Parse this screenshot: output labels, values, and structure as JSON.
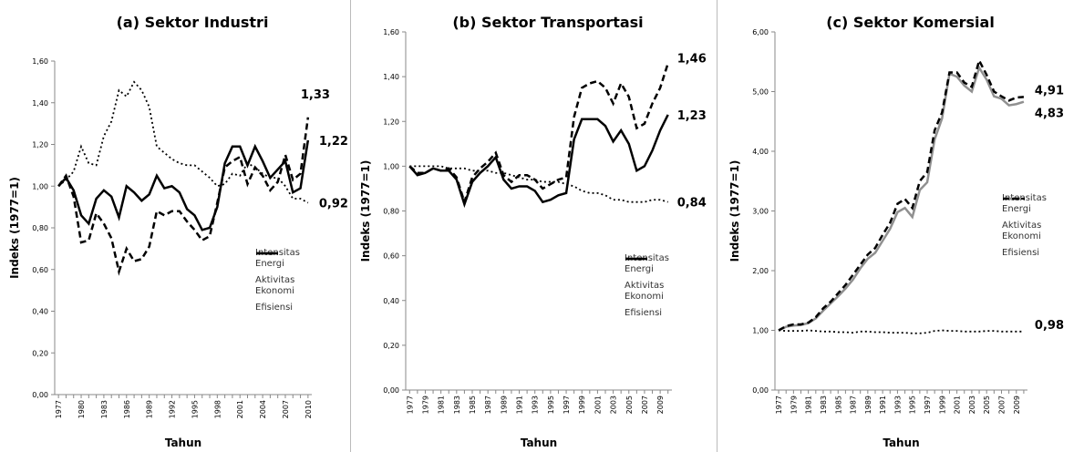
{
  "chart_data": [
    {
      "type": "line",
      "title": "(a) Sektor Industri",
      "x_label": "Tahun",
      "y_label": "Indeks (1977=1)",
      "categories": [
        "1977",
        null,
        null,
        "1980",
        null,
        null,
        "1983",
        null,
        null,
        "1986",
        null,
        null,
        "1989",
        null,
        null,
        "1992",
        null,
        null,
        "1995",
        null,
        null,
        "1998",
        null,
        null,
        "2001",
        null,
        null,
        "2004",
        null,
        null,
        "2007",
        null,
        null,
        "2010"
      ],
      "ylim": [
        0,
        1.6
      ],
      "yticks": [
        {
          "value": 0,
          "label": "0,00"
        },
        {
          "value": 0.2,
          "label": "0,20"
        },
        {
          "value": 0.4,
          "label": "0,40"
        },
        {
          "value": 0.6,
          "label": "0,60"
        },
        {
          "value": 0.8,
          "label": "0,80"
        },
        {
          "value": 1.0,
          "label": "1,00"
        },
        {
          "value": 1.2,
          "label": "1,20"
        },
        {
          "value": 1.4,
          "label": "1,40"
        },
        {
          "value": 1.6,
          "label": "1,60"
        }
      ],
      "series": [
        {
          "name": "Intensitas Energi",
          "color": "#000000",
          "style": "solid",
          "values": [
            1.0,
            1.04,
            0.98,
            0.86,
            0.82,
            0.94,
            0.98,
            0.95,
            0.85,
            1.0,
            0.97,
            0.93,
            0.96,
            1.05,
            0.99,
            1.0,
            0.97,
            0.89,
            0.86,
            0.79,
            0.8,
            0.9,
            1.11,
            1.19,
            1.19,
            1.1,
            1.19,
            1.12,
            1.04,
            1.08,
            1.12,
            0.97,
            0.99,
            1.22
          ],
          "value_labels": [
            null,
            null,
            null,
            null,
            null,
            null,
            null,
            null,
            null,
            null,
            null,
            null,
            null,
            null,
            null,
            null,
            null,
            null,
            null,
            null,
            null,
            null,
            null,
            null,
            null,
            null,
            null,
            null,
            null,
            null,
            null,
            null,
            null,
            "1,22"
          ]
        },
        {
          "name": "Aktivitas Ekonomi",
          "color": "#000000",
          "style": "dotted",
          "values": [
            1.0,
            1.03,
            1.07,
            1.19,
            1.11,
            1.1,
            1.24,
            1.31,
            1.46,
            1.43,
            1.5,
            1.46,
            1.38,
            1.19,
            1.16,
            1.13,
            1.11,
            1.1,
            1.1,
            1.07,
            1.04,
            1.0,
            1.01,
            1.06,
            1.05,
            1.11,
            1.09,
            1.06,
            1.04,
            1.04,
            1.0,
            0.94,
            0.94,
            0.92
          ],
          "value_labels": [
            null,
            null,
            null,
            null,
            null,
            null,
            null,
            null,
            null,
            null,
            null,
            null,
            null,
            null,
            null,
            null,
            null,
            null,
            null,
            null,
            null,
            null,
            null,
            null,
            null,
            null,
            null,
            null,
            null,
            null,
            null,
            null,
            null,
            "0,92"
          ]
        },
        {
          "name": "Efisiensi",
          "color": "#000000",
          "style": "dashed",
          "values": [
            1.0,
            1.05,
            0.95,
            0.73,
            0.74,
            0.87,
            0.82,
            0.75,
            0.59,
            0.7,
            0.64,
            0.65,
            0.71,
            0.88,
            0.86,
            0.88,
            0.88,
            0.83,
            0.79,
            0.74,
            0.76,
            0.92,
            1.09,
            1.12,
            1.14,
            1.01,
            1.09,
            1.05,
            0.98,
            1.02,
            1.15,
            1.03,
            1.06,
            1.33
          ],
          "value_labels": [
            null,
            null,
            null,
            null,
            null,
            null,
            null,
            null,
            null,
            null,
            null,
            null,
            null,
            null,
            null,
            null,
            null,
            null,
            null,
            null,
            null,
            null,
            null,
            null,
            null,
            null,
            null,
            null,
            null,
            null,
            null,
            null,
            null,
            "1,33"
          ]
        }
      ]
    },
    {
      "type": "line",
      "title": "(b) Sektor Transportasi",
      "x_label": "Tahun",
      "y_label": "Indeks (1977=1)",
      "categories": [
        "1977",
        null,
        "1979",
        null,
        "1981",
        null,
        "1983",
        null,
        "1985",
        null,
        "1987",
        null,
        "1989",
        null,
        "1991",
        null,
        "1993",
        null,
        "1995",
        null,
        "1997",
        null,
        "1999",
        null,
        "2001",
        null,
        "2003",
        null,
        "2005",
        null,
        "2007",
        null,
        "2009",
        null
      ],
      "ylim": [
        0,
        1.6
      ],
      "yticks": [
        {
          "value": 0,
          "label": "0,00"
        },
        {
          "value": 0.2,
          "label": "0,20"
        },
        {
          "value": 0.4,
          "label": "0,40"
        },
        {
          "value": 0.6,
          "label": "0,60"
        },
        {
          "value": 0.8,
          "label": "0,80"
        },
        {
          "value": 1.0,
          "label": "1,00"
        },
        {
          "value": 1.2,
          "label": "1,20"
        },
        {
          "value": 1.4,
          "label": "1,40"
        },
        {
          "value": 1.6,
          "label": "1,60"
        }
      ],
      "series": [
        {
          "name": "Intensitas Energi",
          "color": "#000000",
          "style": "solid",
          "values": [
            1.0,
            0.96,
            0.97,
            0.99,
            0.98,
            0.98,
            0.94,
            0.83,
            0.93,
            0.97,
            1.0,
            1.04,
            0.94,
            0.9,
            0.91,
            0.91,
            0.89,
            0.84,
            0.85,
            0.87,
            0.88,
            1.12,
            1.21,
            1.21,
            1.21,
            1.18,
            1.11,
            1.16,
            1.1,
            0.98,
            1.0,
            1.07,
            1.16,
            1.23
          ],
          "value_labels": [
            null,
            null,
            null,
            null,
            null,
            null,
            null,
            null,
            null,
            null,
            null,
            null,
            null,
            null,
            null,
            null,
            null,
            null,
            null,
            null,
            null,
            null,
            null,
            null,
            null,
            null,
            null,
            null,
            null,
            null,
            null,
            null,
            null,
            "1,23"
          ]
        },
        {
          "name": "Aktivitas Ekonomi",
          "color": "#000000",
          "style": "dotted",
          "values": [
            1.0,
            1.0,
            1.0,
            1.0,
            1.0,
            0.99,
            0.99,
            0.99,
            0.98,
            0.98,
            0.98,
            0.97,
            0.97,
            0.96,
            0.95,
            0.94,
            0.94,
            0.93,
            0.93,
            0.93,
            0.92,
            0.91,
            0.89,
            0.88,
            0.88,
            0.87,
            0.85,
            0.85,
            0.84,
            0.84,
            0.84,
            0.85,
            0.85,
            0.84
          ],
          "value_labels": [
            null,
            null,
            null,
            null,
            null,
            null,
            null,
            null,
            null,
            null,
            null,
            null,
            null,
            null,
            null,
            null,
            null,
            null,
            null,
            null,
            null,
            null,
            null,
            null,
            null,
            null,
            null,
            null,
            null,
            null,
            null,
            null,
            null,
            "0,84"
          ]
        },
        {
          "name": "Efisiensi",
          "color": "#000000",
          "style": "dashed",
          "values": [
            1.0,
            0.97,
            0.97,
            0.99,
            0.98,
            0.99,
            0.95,
            0.84,
            0.95,
            0.99,
            1.02,
            1.06,
            0.96,
            0.93,
            0.96,
            0.96,
            0.94,
            0.9,
            0.92,
            0.94,
            0.95,
            1.22,
            1.35,
            1.37,
            1.38,
            1.35,
            1.28,
            1.37,
            1.31,
            1.17,
            1.19,
            1.28,
            1.35,
            1.46
          ],
          "value_labels": [
            null,
            null,
            null,
            null,
            null,
            null,
            null,
            null,
            null,
            null,
            null,
            null,
            null,
            null,
            null,
            null,
            null,
            null,
            null,
            null,
            null,
            null,
            null,
            null,
            null,
            null,
            null,
            null,
            null,
            null,
            null,
            null,
            null,
            "1,46"
          ]
        }
      ]
    },
    {
      "type": "line",
      "title": "(c) Sektor Komersial",
      "x_label": "Tahun",
      "y_label": "Indeks (1977=1)",
      "categories": [
        "1977",
        null,
        "1979",
        null,
        "1981",
        null,
        "1983",
        null,
        "1985",
        null,
        "1987",
        null,
        "1989",
        null,
        "1991",
        null,
        "1993",
        null,
        "1995",
        null,
        "1997",
        null,
        "1999",
        null,
        "2001",
        null,
        "2003",
        null,
        "2005",
        null,
        "2007",
        null,
        "2009",
        null
      ],
      "ylim": [
        0,
        6
      ],
      "yticks": [
        {
          "value": 0,
          "label": "0,00"
        },
        {
          "value": 1,
          "label": "1,00"
        },
        {
          "value": 2,
          "label": "2,00"
        },
        {
          "value": 3,
          "label": "3,00"
        },
        {
          "value": 4,
          "label": "4,00"
        },
        {
          "value": 5,
          "label": "5,00"
        },
        {
          "value": 6,
          "label": "6,00"
        }
      ],
      "series": [
        {
          "name": "Intensitas Energi",
          "color": "#909090",
          "style": "solid",
          "values": [
            1.0,
            1.06,
            1.08,
            1.09,
            1.12,
            1.2,
            1.33,
            1.45,
            1.57,
            1.7,
            1.85,
            2.04,
            2.2,
            2.3,
            2.5,
            2.7,
            2.98,
            3.05,
            2.9,
            3.35,
            3.48,
            4.2,
            4.55,
            5.3,
            5.25,
            5.1,
            5.0,
            5.4,
            5.2,
            4.92,
            4.88,
            4.77,
            4.79,
            4.83
          ],
          "value_labels": [
            null,
            null,
            null,
            null,
            null,
            null,
            null,
            null,
            null,
            null,
            null,
            null,
            null,
            null,
            null,
            null,
            null,
            null,
            null,
            null,
            null,
            null,
            null,
            null,
            null,
            null,
            null,
            null,
            null,
            null,
            null,
            null,
            null,
            "4,83"
          ]
        },
        {
          "name": "Aktivitas Ekonomi",
          "color": "#000000",
          "style": "dotted",
          "values": [
            1.0,
            0.99,
            0.99,
            0.99,
            1.0,
            0.99,
            0.98,
            0.98,
            0.97,
            0.97,
            0.96,
            0.98,
            0.98,
            0.97,
            0.97,
            0.96,
            0.96,
            0.96,
            0.95,
            0.95,
            0.96,
            0.99,
            1.0,
            0.99,
            0.99,
            0.98,
            0.98,
            0.98,
            0.99,
            0.99,
            0.98,
            0.98,
            0.98,
            0.98
          ],
          "value_labels": [
            null,
            null,
            null,
            null,
            null,
            null,
            null,
            null,
            null,
            null,
            null,
            null,
            null,
            null,
            null,
            null,
            null,
            null,
            null,
            null,
            null,
            null,
            null,
            null,
            null,
            null,
            null,
            null,
            null,
            null,
            null,
            null,
            null,
            "0,98"
          ]
        },
        {
          "name": "Efisiensi",
          "color": "#000000",
          "style": "dashed",
          "values": [
            1.0,
            1.07,
            1.1,
            1.1,
            1.13,
            1.22,
            1.37,
            1.48,
            1.62,
            1.76,
            1.93,
            2.1,
            2.27,
            2.38,
            2.6,
            2.8,
            3.12,
            3.2,
            3.05,
            3.5,
            3.65,
            4.35,
            4.65,
            5.32,
            5.32,
            5.15,
            5.08,
            5.52,
            5.28,
            5.0,
            4.92,
            4.85,
            4.9,
            4.91
          ],
          "value_labels": [
            null,
            null,
            null,
            null,
            null,
            null,
            null,
            null,
            null,
            null,
            null,
            null,
            null,
            null,
            null,
            null,
            null,
            null,
            null,
            null,
            null,
            null,
            null,
            null,
            null,
            null,
            null,
            null,
            null,
            null,
            null,
            null,
            null,
            "4,91"
          ]
        }
      ]
    }
  ]
}
